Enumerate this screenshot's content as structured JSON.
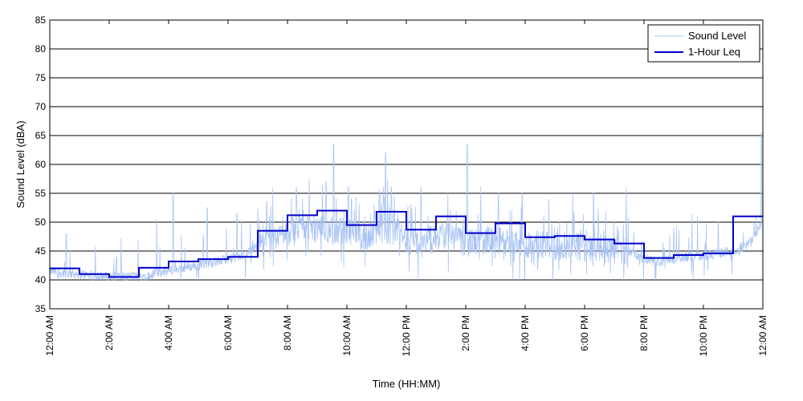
{
  "chart_data": {
    "type": "line",
    "xlabel": "Time (HH:MM)",
    "ylabel": "Sound Level (dBA)",
    "x_unit": "hours",
    "xlim": [
      0,
      24
    ],
    "ylim": [
      35,
      85
    ],
    "yticks": [
      35,
      40,
      45,
      50,
      55,
      60,
      65,
      70,
      75,
      80,
      85
    ],
    "xticks": [
      0,
      2,
      4,
      6,
      8,
      10,
      12,
      14,
      16,
      18,
      20,
      22,
      24
    ],
    "xtick_labels": [
      "12:00 AM",
      "2:00 AM",
      "4:00 AM",
      "6:00 AM",
      "8:00 AM",
      "10:00 AM",
      "12:00 PM",
      "2:00 PM",
      "4:00 PM",
      "6:00 PM",
      "8:00 PM",
      "10:00 PM",
      "12:00 AM"
    ],
    "grid": "horizontal",
    "legend_position": "top-right",
    "colors": {
      "sound_level": "#a9c4f5",
      "leq": "#0000cc",
      "grid": "#000000"
    },
    "series": [
      {
        "name": "Sound Level",
        "style": "thin-noisy",
        "x": [
          0,
          0.5,
          1,
          1.5,
          2,
          2.5,
          3,
          3.5,
          4,
          4.5,
          5,
          5.5,
          6,
          6.5,
          7,
          7.5,
          8,
          8.5,
          9,
          9.5,
          10,
          10.5,
          11,
          11.5,
          12,
          12.5,
          13,
          13.5,
          14,
          14.5,
          15,
          15.5,
          16,
          16.5,
          17,
          17.5,
          18,
          18.5,
          19,
          19.5,
          20,
          20.5,
          21,
          21.5,
          22,
          22.5,
          23,
          23.5,
          24
        ],
        "values": [
          41.5,
          41,
          41,
          40.5,
          40.5,
          40.5,
          40.5,
          41,
          41.5,
          42,
          42.5,
          43,
          43.5,
          44,
          46,
          47,
          48,
          49,
          49,
          48.5,
          48,
          47,
          48,
          48.5,
          47,
          46,
          47,
          47.5,
          46,
          46.5,
          46.5,
          46,
          45.5,
          46,
          45.5,
          45.5,
          45.5,
          45,
          45,
          45,
          43.5,
          43,
          43.5,
          44,
          44,
          44.5,
          45,
          46,
          50
        ],
        "peaks": [
          [
            0.55,
            48
          ],
          [
            2.25,
            44
          ],
          [
            3.6,
            50.5
          ],
          [
            4.15,
            55
          ],
          [
            5.3,
            52.5
          ],
          [
            6.3,
            51.5
          ],
          [
            7.3,
            53.5
          ],
          [
            8.3,
            56
          ],
          [
            9.3,
            57
          ],
          [
            9.55,
            63.5
          ],
          [
            10.05,
            56
          ],
          [
            11.3,
            62
          ],
          [
            11.5,
            56
          ],
          [
            12.5,
            56
          ],
          [
            13.4,
            55
          ],
          [
            14.05,
            63.5
          ],
          [
            15.1,
            55
          ],
          [
            15.9,
            55
          ],
          [
            16.8,
            54
          ],
          [
            17.6,
            55
          ],
          [
            18.3,
            55
          ],
          [
            19.4,
            56
          ],
          [
            21.0,
            49
          ],
          [
            21.8,
            51
          ],
          [
            22.5,
            50
          ],
          [
            23.95,
            65.5
          ]
        ]
      },
      {
        "name": "1-Hour Leq",
        "style": "step",
        "x": [
          0,
          1,
          2,
          3,
          4,
          5,
          6,
          7,
          8,
          9,
          10,
          11,
          12,
          13,
          14,
          15,
          16,
          17,
          18,
          19,
          20,
          21,
          22,
          23,
          24
        ],
        "values": [
          42,
          41,
          40.5,
          42.1,
          43.2,
          43.6,
          44,
          48.5,
          51.2,
          52,
          49.5,
          51.8,
          48.7,
          51,
          48.1,
          49.8,
          47.4,
          47.6,
          47,
          46.3,
          43.8,
          44.3,
          44.6,
          51,
          51
        ]
      }
    ]
  }
}
